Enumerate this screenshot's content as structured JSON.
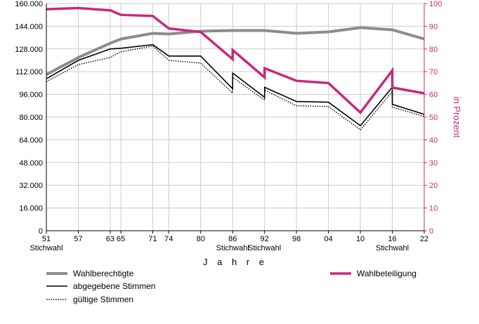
{
  "chart_data": {
    "type": "line",
    "xlabel": "J a h r e",
    "y2label": "in Prozent",
    "ylim": [
      0,
      160000
    ],
    "y2lim": [
      0,
      100
    ],
    "y_ticks": [
      "0",
      "16.000",
      "32.000",
      "48.000",
      "64.000",
      "80.000",
      "96.000",
      "112.000",
      "128.000",
      "144.000",
      "160.000"
    ],
    "y2_ticks": [
      "0",
      "10",
      "20",
      "30",
      "40",
      "50",
      "60",
      "70",
      "80",
      "90",
      "100"
    ],
    "x_ticks": [
      {
        "label": "51",
        "year": 1951,
        "sub": "Stichwahl"
      },
      {
        "label": "57",
        "year": 1957,
        "sub": ""
      },
      {
        "label": "63",
        "year": 1963,
        "sub": ""
      },
      {
        "label": "65",
        "year": 1965,
        "sub": ""
      },
      {
        "label": "71",
        "year": 1971,
        "sub": ""
      },
      {
        "label": "74",
        "year": 1974,
        "sub": ""
      },
      {
        "label": "80",
        "year": 1980,
        "sub": ""
      },
      {
        "label": "86",
        "year": 1986,
        "sub": "Stichwahl"
      },
      {
        "label": "92",
        "year": 1992,
        "sub": "Stichwahl"
      },
      {
        "label": "98",
        "year": 1998,
        "sub": ""
      },
      {
        "label": "04",
        "year": 2004,
        "sub": ""
      },
      {
        "label": "10",
        "year": 2010,
        "sub": ""
      },
      {
        "label": "16",
        "year": 2016,
        "sub": "Stichwahl"
      },
      {
        "label": "22",
        "year": 2022,
        "sub": ""
      }
    ],
    "x_range": [
      1951,
      2022
    ],
    "colors": {
      "gray": "#8c8c8c",
      "black": "#000000",
      "magenta": "#c8287a",
      "grid": "#cccccc"
    },
    "series": [
      {
        "name": "Wahlberechtigte",
        "axis": "left",
        "style": "gray",
        "x": [
          1951,
          1957,
          1963,
          1965,
          1971,
          1974,
          1980,
          1986,
          1992,
          1998,
          2004,
          2010,
          2016,
          2022
        ],
        "values": [
          110000,
          122000,
          132000,
          135000,
          139000,
          138500,
          140500,
          141000,
          141000,
          139000,
          140000,
          143000,
          141500,
          135000
        ]
      },
      {
        "name": "abgegebene Stimmen",
        "axis": "left",
        "style": "solid",
        "x": [
          1951,
          1957,
          1963,
          1965,
          1971,
          1974,
          1980,
          1986,
          1986.01,
          1992,
          1992.01,
          1998,
          2004,
          2010,
          2016,
          2016.01,
          2022
        ],
        "values": [
          107000,
          120000,
          128000,
          128500,
          131000,
          123000,
          123000,
          100000,
          111000,
          94000,
          101000,
          91000,
          90500,
          74000,
          101000,
          89000,
          82000
        ]
      },
      {
        "name": "gültige Stimmen",
        "axis": "left",
        "style": "dotted",
        "x": [
          1951,
          1957,
          1963,
          1965,
          1971,
          1974,
          1980,
          1986,
          1986.01,
          1992,
          1992.01,
          1998,
          2004,
          2010,
          2016,
          2016.01,
          2022
        ],
        "values": [
          105000,
          117000,
          122000,
          126000,
          130000,
          120000,
          118000,
          97000,
          108000,
          92000,
          99000,
          88000,
          87500,
          71000,
          98000,
          87000,
          80500
        ]
      },
      {
        "name": "Wahlbeteiligung",
        "axis": "right",
        "style": "magenta",
        "x": [
          1951,
          1957,
          1963,
          1965,
          1971,
          1974,
          1980,
          1986,
          1986.01,
          1992,
          1992.01,
          1998,
          2004,
          2010,
          2016,
          2016.01,
          2022
        ],
        "values": [
          97.5,
          98,
          97,
          95,
          94.5,
          89,
          87.5,
          75.5,
          79.5,
          67.5,
          71.5,
          66,
          65,
          52,
          70.5,
          63,
          60.5
        ]
      }
    ],
    "legend": [
      {
        "label": "Wahlberechtigte",
        "style": "gray"
      },
      {
        "label": "abgegebene Stimmen",
        "style": "solid"
      },
      {
        "label": "gültige Stimmen",
        "style": "dotted"
      },
      {
        "label": "Wahlbeteiligung",
        "style": "magenta"
      }
    ]
  }
}
